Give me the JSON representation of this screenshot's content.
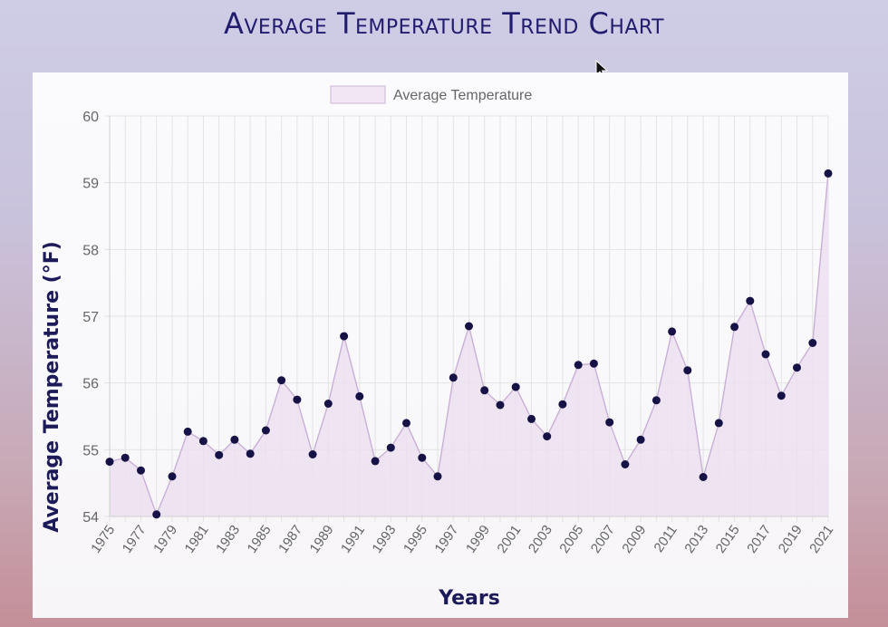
{
  "page": {
    "title": "Average Temperature Trend Chart"
  },
  "chart_data": {
    "type": "line",
    "title": "",
    "xlabel": "Years",
    "ylabel": "Average Temperature (°F)",
    "ylim": [
      54,
      60
    ],
    "yticks": [
      54,
      55,
      56,
      57,
      58,
      59,
      60
    ],
    "grid": true,
    "legend_position": "top",
    "x_tick_labels": [
      "1975",
      "1977",
      "1979",
      "1981",
      "1983",
      "1985",
      "1987",
      "1989",
      "1991",
      "1993",
      "1995",
      "1997",
      "1999",
      "2001",
      "2003",
      "2005",
      "2007",
      "2009",
      "2011",
      "2013",
      "2015",
      "2017",
      "2019",
      "2021"
    ],
    "series": [
      {
        "name": "Average Temperature",
        "fill_color": "#ece0f0",
        "line_color": "#c8b0d6",
        "point_color": "#161245",
        "x": [
          1975,
          1976,
          1977,
          1978,
          1979,
          1980,
          1981,
          1982,
          1983,
          1984,
          1985,
          1986,
          1987,
          1988,
          1989,
          1990,
          1991,
          1992,
          1993,
          1994,
          1995,
          1996,
          1997,
          1998,
          1999,
          2000,
          2001,
          2002,
          2003,
          2004,
          2005,
          2006,
          2007,
          2008,
          2009,
          2010,
          2011,
          2012,
          2013,
          2014,
          2015,
          2016,
          2017,
          2018,
          2019,
          2020,
          2021
        ],
        "values": [
          54.82,
          54.88,
          54.69,
          54.03,
          54.6,
          55.27,
          55.13,
          54.92,
          55.15,
          54.94,
          55.29,
          56.04,
          55.75,
          54.93,
          55.69,
          56.7,
          55.8,
          54.83,
          55.03,
          55.4,
          54.88,
          54.6,
          56.08,
          56.85,
          55.89,
          55.67,
          55.94,
          55.46,
          55.2,
          55.68,
          56.27,
          56.29,
          55.41,
          54.78,
          55.15,
          55.74,
          56.77,
          56.19,
          54.59,
          55.4,
          56.84,
          57.23,
          56.43,
          55.81,
          56.23,
          56.6,
          59.14
        ]
      }
    ]
  }
}
